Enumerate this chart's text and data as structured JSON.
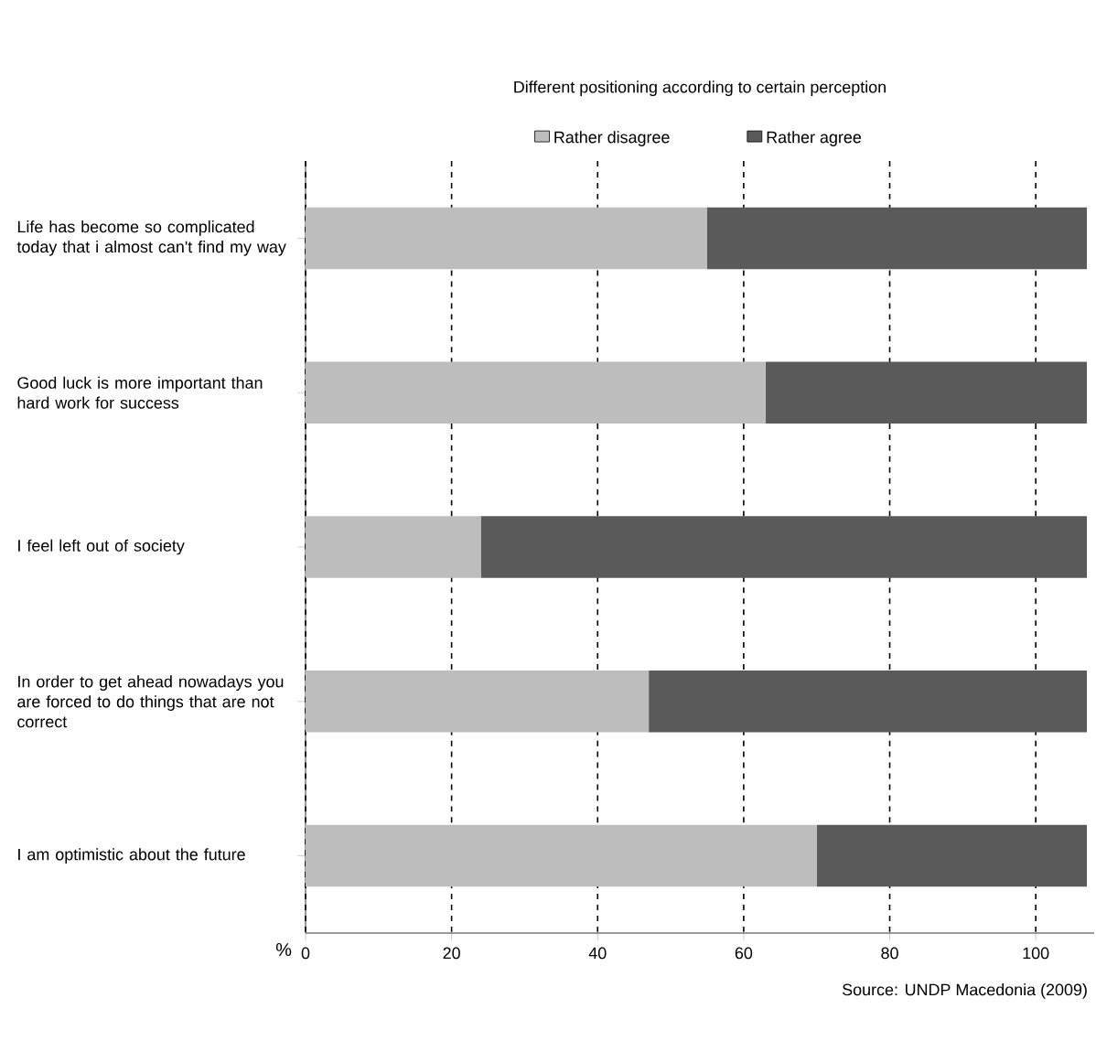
{
  "chart_data": {
    "type": "bar",
    "orientation": "horizontal",
    "stacked": true,
    "title": "Different positioning according to certain perception",
    "categories": [
      "Life has become so complicated today that i almost can't find my way",
      "Good luck is more important than hard work for success",
      "I feel left out of society",
      "In order to get ahead nowadays you are forced to do things that are not correct",
      "I am optimistic about the future"
    ],
    "series": [
      {
        "name": "Rather disagree",
        "color": "#bdbdbd",
        "values": [
          55,
          63,
          24,
          47,
          70
        ]
      },
      {
        "name": "Rather agree",
        "color": "#5a5a5a",
        "values": [
          52,
          44,
          83,
          60,
          37
        ]
      }
    ],
    "xlabel": "%",
    "xlim": [
      0,
      108
    ],
    "xticks": [
      0,
      20,
      40,
      60,
      80,
      100
    ],
    "grid": "x",
    "legend": "top",
    "annotations": [
      "Source: UNDP Macedonia (2009)"
    ]
  }
}
